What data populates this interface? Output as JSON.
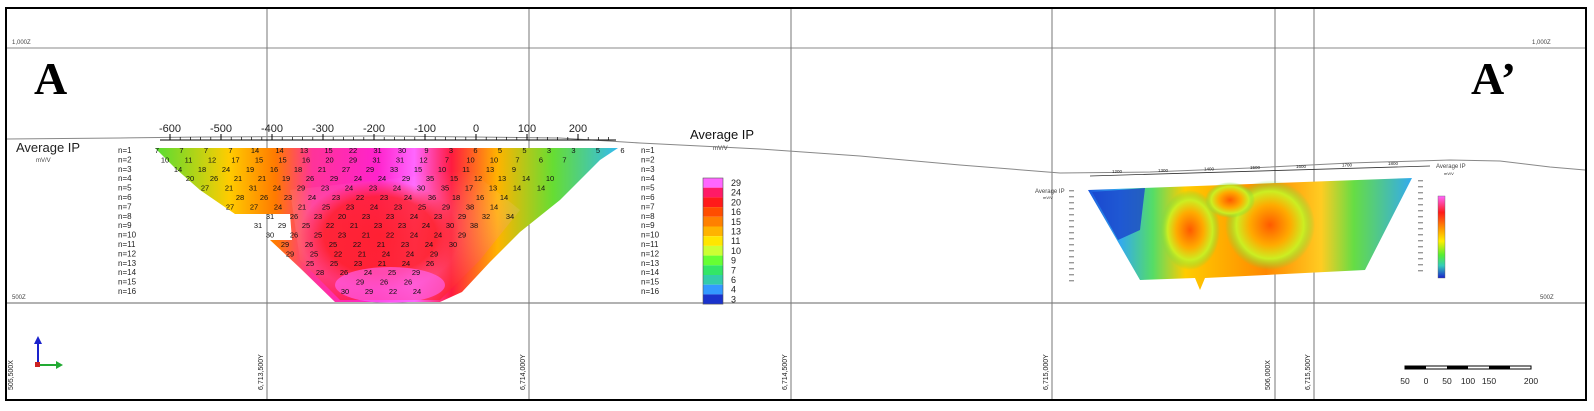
{
  "section": {
    "label_left": "A",
    "label_right": "A’",
    "elev_top": "1,000Z",
    "elev_bottom": "500Z"
  },
  "grid_labels": {
    "easting_left": "505,500X",
    "easting_right": "506,000X",
    "northings": [
      "6,713,500Y",
      "6,714,000Y",
      "6,714,500Y",
      "6,715,000Y",
      "6,715,500Y"
    ]
  },
  "left_panel": {
    "title": "Average IP",
    "unit": "mV/V",
    "axis_ticks": [
      "-600",
      "-500",
      "-400",
      "-300",
      "-200",
      "-100",
      "0",
      "100",
      "200"
    ],
    "levels": [
      "n=1",
      "n=2",
      "n=3",
      "n=4",
      "n=5",
      "n=6",
      "n=7",
      "n=8",
      "n=9",
      "n=10",
      "n=11",
      "n=12",
      "n=13",
      "n=14",
      "n=15",
      "n=16"
    ]
  },
  "legend": {
    "title": "Average IP",
    "unit": "mV/V",
    "values": [
      "29",
      "24",
      "20",
      "16",
      "15",
      "13",
      "11",
      "10",
      "9",
      "7",
      "6",
      "4",
      "3"
    ],
    "colors": [
      "#ff66ff",
      "#ff1a66",
      "#ff1a1a",
      "#ff4d00",
      "#ff8000",
      "#ffb300",
      "#ffe600",
      "#ccff33",
      "#66ff33",
      "#33e666",
      "#33ccaa",
      "#3399ff",
      "#1a33cc"
    ]
  },
  "pseudo_values": [
    [
      "7",
      "7",
      "7",
      "7",
      "14",
      "14",
      "13",
      "15",
      "22",
      "31",
      "30",
      "9",
      "3",
      "6",
      "5",
      "5",
      "3",
      "3",
      "5",
      "6"
    ],
    [
      "10",
      "11",
      "12",
      "17",
      "15",
      "15",
      "16",
      "20",
      "29",
      "31",
      "31",
      "12",
      "7",
      "10",
      "10",
      "7",
      "6",
      "7"
    ],
    [
      "14",
      "18",
      "24",
      "19",
      "16",
      "18",
      "21",
      "27",
      "29",
      "33",
      "15",
      "10",
      "11",
      "13",
      "9"
    ],
    [
      "20",
      "26",
      "21",
      "21",
      "19",
      "26",
      "29",
      "24",
      "24",
      "29",
      "35",
      "15",
      "12",
      "13",
      "14",
      "10"
    ],
    [
      "27",
      "21",
      "31",
      "24",
      "29",
      "23",
      "24",
      "23",
      "24",
      "30",
      "35",
      "17",
      "13",
      "14",
      "14"
    ],
    [
      "28",
      "26",
      "23",
      "24",
      "23",
      "22",
      "23",
      "24",
      "36",
      "18",
      "16",
      "14"
    ],
    [
      "27",
      "27",
      "24",
      "21",
      "25",
      "23",
      "24",
      "23",
      "25",
      "29",
      "38",
      "14"
    ],
    [
      "31",
      "26",
      "23",
      "20",
      "23",
      "23",
      "24",
      "23",
      "29",
      "32",
      "34"
    ],
    [
      "31",
      "29",
      "25",
      "22",
      "21",
      "23",
      "23",
      "24",
      "30",
      "38"
    ],
    [
      "30",
      "26",
      "25",
      "23",
      "21",
      "22",
      "24",
      "24",
      "29"
    ],
    [
      "29",
      "26",
      "25",
      "22",
      "21",
      "23",
      "24",
      "30"
    ],
    [
      "29",
      "25",
      "22",
      "21",
      "24",
      "24",
      "29"
    ],
    [
      "25",
      "25",
      "23",
      "21",
      "24",
      "26"
    ],
    [
      "28",
      "26",
      "24",
      "25",
      "29"
    ],
    [
      "29",
      "26",
      "26"
    ],
    [
      "30",
      "29",
      "22",
      "24"
    ]
  ],
  "right_panel": {
    "title": "Average IP",
    "unit": "mV/V",
    "axis_ticks": [
      "1200",
      "1300",
      "1400",
      "1500",
      "1600",
      "1700",
      "1800"
    ],
    "legend_title": "Average IP",
    "legend_unit": "mV/V"
  },
  "scale_bar": {
    "labels": [
      "50",
      "0",
      "50",
      "100",
      "150",
      "200"
    ]
  }
}
